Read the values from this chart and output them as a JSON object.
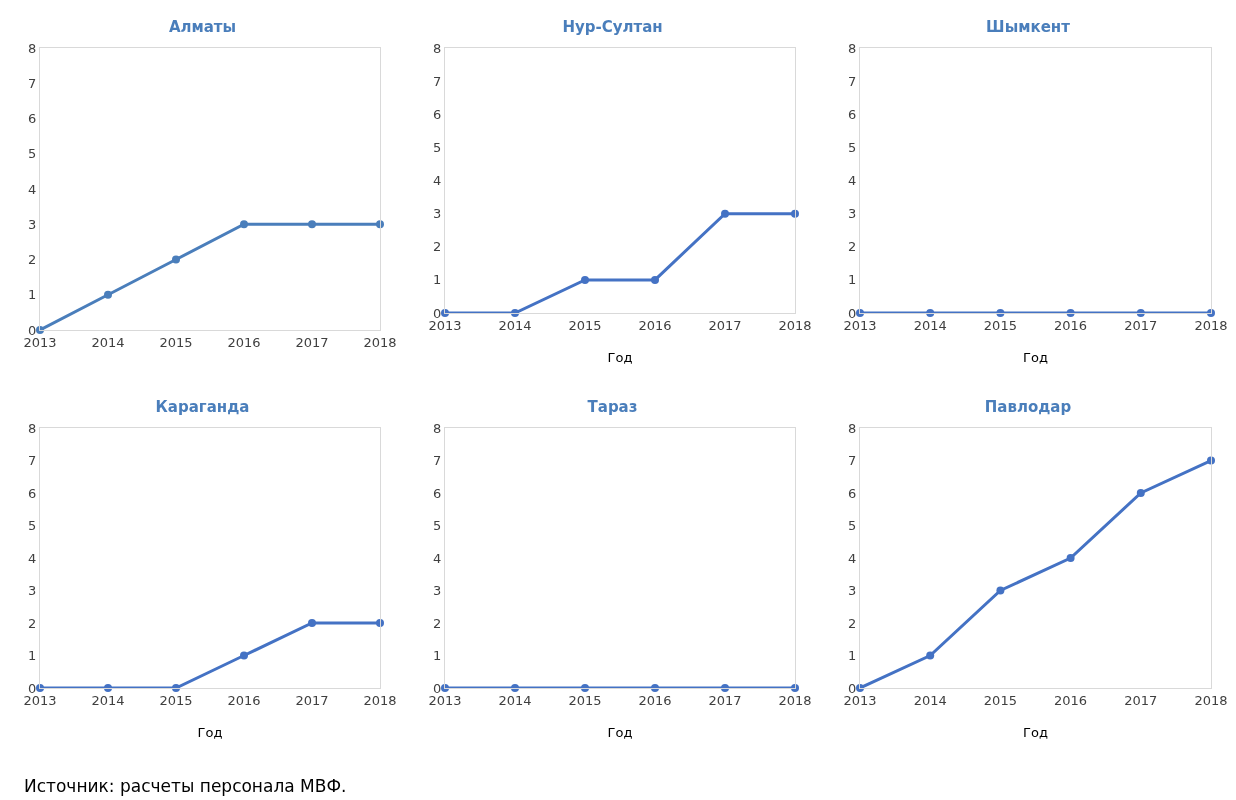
{
  "chart_data": [
    {
      "type": "line",
      "title": "Алматы",
      "x": [
        2013,
        2014,
        2015,
        2016,
        2017,
        2018
      ],
      "series": [
        {
          "color": "#4a7ebb",
          "values": [
            0,
            1,
            2,
            3,
            3,
            3
          ]
        }
      ],
      "xlim": [
        2013,
        2018
      ],
      "xticks": [
        2013,
        2014,
        2015,
        2016,
        2017,
        2018
      ],
      "ylim": [
        0,
        8
      ],
      "yticks": [
        0,
        1,
        2,
        3,
        4,
        5,
        6,
        7,
        8
      ],
      "grid": false,
      "legend": false,
      "marker": "circle",
      "line_style": "solid"
    },
    {
      "type": "line",
      "title": "Нур-Султан",
      "xlabel": "Год",
      "x": [
        2013,
        2014,
        2015,
        2016,
        2017,
        2018
      ],
      "series": [
        {
          "color": "#4472c4",
          "values": [
            0,
            0,
            1,
            1,
            3,
            3
          ]
        }
      ],
      "xlim": [
        2013,
        2018
      ],
      "xticks": [
        2013,
        2014,
        2015,
        2016,
        2017,
        2018
      ],
      "ylim": [
        0,
        8
      ],
      "yticks": [
        0,
        1,
        2,
        3,
        4,
        5,
        6,
        7,
        8
      ],
      "grid": false,
      "legend": false,
      "marker": "circle",
      "line_style": "solid"
    },
    {
      "type": "line",
      "title": "Шымкент",
      "xlabel": "Год",
      "x": [
        2013,
        2014,
        2015,
        2016,
        2017,
        2018
      ],
      "series": [
        {
          "color": "#4472c4",
          "values": [
            0,
            0,
            0,
            0,
            0,
            0
          ]
        }
      ],
      "xlim": [
        2013,
        2018
      ],
      "xticks": [
        2013,
        2014,
        2015,
        2016,
        2017,
        2018
      ],
      "ylim": [
        0,
        8
      ],
      "yticks": [
        0,
        1,
        2,
        3,
        4,
        5,
        6,
        7,
        8
      ],
      "grid": false,
      "legend": false,
      "marker": "circle",
      "line_style": "solid"
    },
    {
      "type": "line",
      "title": "Караганда",
      "xlabel": "Год",
      "x": [
        2013,
        2014,
        2015,
        2016,
        2017,
        2018
      ],
      "series": [
        {
          "color": "#4472c4",
          "values": [
            0,
            0,
            0,
            1,
            2,
            2
          ]
        }
      ],
      "xlim": [
        2013,
        2018
      ],
      "xticks": [
        2013,
        2014,
        2015,
        2016,
        2017,
        2018
      ],
      "ylim": [
        0,
        8
      ],
      "yticks": [
        0,
        1,
        2,
        3,
        4,
        5,
        6,
        7,
        8
      ],
      "grid": false,
      "legend": false,
      "marker": "circle",
      "line_style": "solid"
    },
    {
      "type": "line",
      "title": "Тараз",
      "xlabel": "Год",
      "x": [
        2013,
        2014,
        2015,
        2016,
        2017,
        2018
      ],
      "series": [
        {
          "color": "#4472c4",
          "values": [
            0,
            0,
            0,
            0,
            0,
            0
          ]
        }
      ],
      "xlim": [
        2013,
        2018
      ],
      "xticks": [
        2013,
        2014,
        2015,
        2016,
        2017,
        2018
      ],
      "ylim": [
        0,
        8
      ],
      "yticks": [
        0,
        1,
        2,
        3,
        4,
        5,
        6,
        7,
        8
      ],
      "grid": false,
      "legend": false,
      "marker": "circle",
      "line_style": "solid"
    },
    {
      "type": "line",
      "title": "Павлодар",
      "xlabel": "Год",
      "x": [
        2013,
        2014,
        2015,
        2016,
        2017,
        2018
      ],
      "series": [
        {
          "color": "#4472c4",
          "values": [
            0,
            1,
            3,
            4,
            6,
            7
          ]
        }
      ],
      "xlim": [
        2013,
        2018
      ],
      "xticks": [
        2013,
        2014,
        2015,
        2016,
        2017,
        2018
      ],
      "ylim": [
        0,
        8
      ],
      "yticks": [
        0,
        1,
        2,
        3,
        4,
        5,
        6,
        7,
        8
      ],
      "grid": false,
      "legend": false,
      "marker": "circle",
      "line_style": "solid",
      "annotations": [
        "Источник: расчеты персонала МВФ."
      ]
    }
  ]
}
